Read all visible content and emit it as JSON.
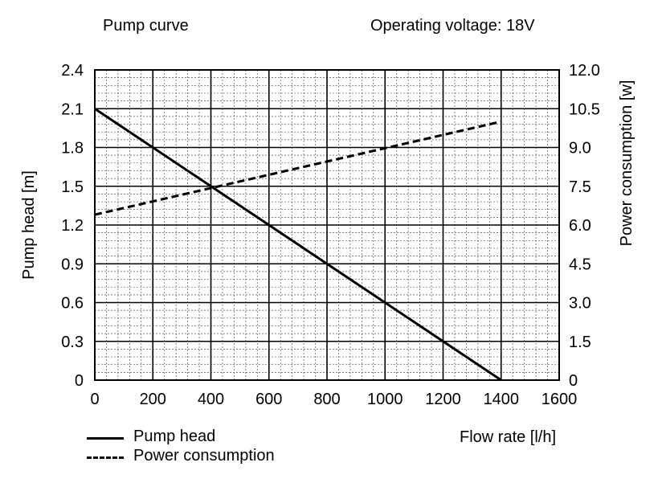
{
  "chart_data": {
    "type": "line",
    "title": "Pump curve",
    "subtitle": "Operating voltage: 18V",
    "xlabel": "Flow rate [l/h]",
    "ylabel": "Pump head [m]",
    "y2label": "Power consumption [w]",
    "xlim": [
      0,
      1600
    ],
    "ylim": [
      0,
      2.4
    ],
    "y2lim": [
      0,
      12.0
    ],
    "x_ticks": [
      "0",
      "200",
      "400",
      "600",
      "800",
      "1000",
      "1200",
      "1400",
      "1600"
    ],
    "y_ticks": [
      "0",
      "0.3",
      "0.6",
      "0.9",
      "1.2",
      "1.5",
      "1.8",
      "2.1",
      "2.4"
    ],
    "y2_ticks": [
      "0",
      "1.5",
      "3.0",
      "4.5",
      "6.0",
      "7.5",
      "9.0",
      "10.5",
      "12.0"
    ],
    "grid": true,
    "legend_position": "bottom-left",
    "series": [
      {
        "name": "Pump head",
        "axis": "left",
        "style": "solid",
        "color": "#000000",
        "x": [
          0,
          1400
        ],
        "y": [
          2.1,
          0
        ]
      },
      {
        "name": "Power consumption",
        "axis": "right",
        "style": "dashed",
        "color": "#000000",
        "x": [
          0,
          1400
        ],
        "y": [
          6.4,
          10.0
        ]
      }
    ]
  }
}
